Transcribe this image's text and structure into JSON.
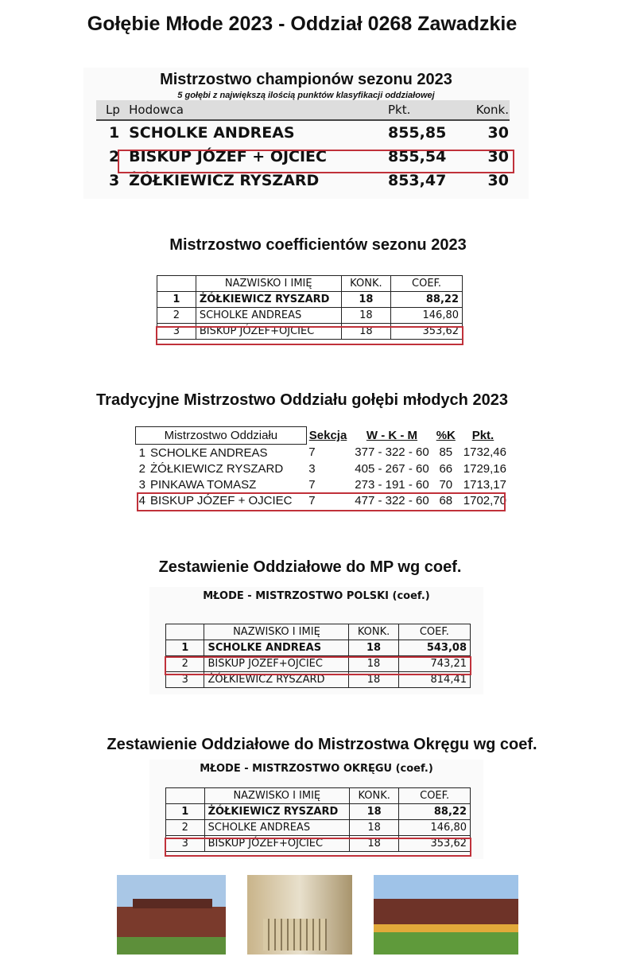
{
  "title": "Gołębie Młode 2023 - Oddział 0268 Zawadzkie",
  "s1": {
    "title": "Mistrzostwo championów sezonu 2023",
    "subtitle": "5 gołębi z największą ilością punktów klasyfikacji oddziałowej",
    "headers": [
      "Lp",
      "Hodowca",
      "Pkt.",
      "Konk."
    ],
    "rows": [
      [
        "1",
        "SCHOLKE ANDREAS",
        "855,85",
        "30"
      ],
      [
        "2",
        "BISKUP JÓZEF + OJCIEC",
        "855,54",
        "30"
      ],
      [
        "3",
        "ŻÓŁKIEWICZ RYSZARD",
        "853,47",
        "30"
      ]
    ],
    "highlight": 1
  },
  "s2": {
    "title": "Mistrzostwo coefficientów sezonu 2023",
    "headers": [
      "",
      "NAZWISKO I IMIĘ",
      "KONK.",
      "COEF."
    ],
    "rows": [
      [
        "1",
        "ŻÓŁKIEWICZ RYSZARD",
        "18",
        "88,22"
      ],
      [
        "2",
        "SCHOLKE ANDREAS",
        "18",
        "146,80"
      ],
      [
        "3",
        "BISKUP JÓZEF+OJCIEC",
        "18",
        "353,62"
      ]
    ],
    "highlight": 2
  },
  "s3": {
    "title": "Tradycyjne Mistrzostwo Oddziału gołębi młodych 2023",
    "headers": [
      "Mistrzostwo Oddziału",
      "Sekcja",
      "W - K - M",
      "%K",
      "Pkt."
    ],
    "rows": [
      [
        "1",
        "SCHOLKE ANDREAS",
        "7",
        "377 - 322 - 60",
        "85",
        "1732,46"
      ],
      [
        "2",
        "ŻÓŁKIEWICZ RYSZARD",
        "3",
        "405 - 267 - 60",
        "66",
        "1729,16"
      ],
      [
        "3",
        "PINKAWA TOMASZ",
        "7",
        "273 - 191 - 60",
        "70",
        "1713,17"
      ],
      [
        "4",
        "BISKUP JÓZEF + OJCIEC",
        "7",
        "477 - 322 - 60",
        "68",
        "1702,70"
      ]
    ],
    "highlight": 3
  },
  "s4": {
    "title": "Zestawienie Oddziałowe do MP wg coef.",
    "subtitle": "MŁODE - MISTRZOSTWO POLSKI (coef.)",
    "headers": [
      "",
      "NAZWISKO I IMIĘ",
      "KONK.",
      "COEF."
    ],
    "rows": [
      [
        "1",
        "SCHOLKE ANDREAS",
        "18",
        "543,08"
      ],
      [
        "2",
        "BISKUP JÓZEF+OJCIEC",
        "18",
        "743,21"
      ],
      [
        "3",
        "ŻÓŁKIEWICZ RYSZARD",
        "18",
        "814,41"
      ]
    ],
    "highlight": 1
  },
  "s5": {
    "title": "Zestawienie Oddziałowe do Mistrzostwa Okręgu wg coef.",
    "subtitle": "MŁODE - MISTRZOSTWO OKRĘGU (coef.)",
    "headers": [
      "",
      "NAZWISKO I IMIĘ",
      "KONK.",
      "COEF."
    ],
    "rows": [
      [
        "1",
        "ŻÓŁKIEWICZ RYSZARD",
        "18",
        "88,22"
      ],
      [
        "2",
        "SCHOLKE ANDREAS",
        "18",
        "146,80"
      ],
      [
        "3",
        "BISKUP JÓZEF+OJCIEC",
        "18",
        "353,62"
      ]
    ],
    "highlight": 2
  },
  "highlight_color": "#c0313a"
}
